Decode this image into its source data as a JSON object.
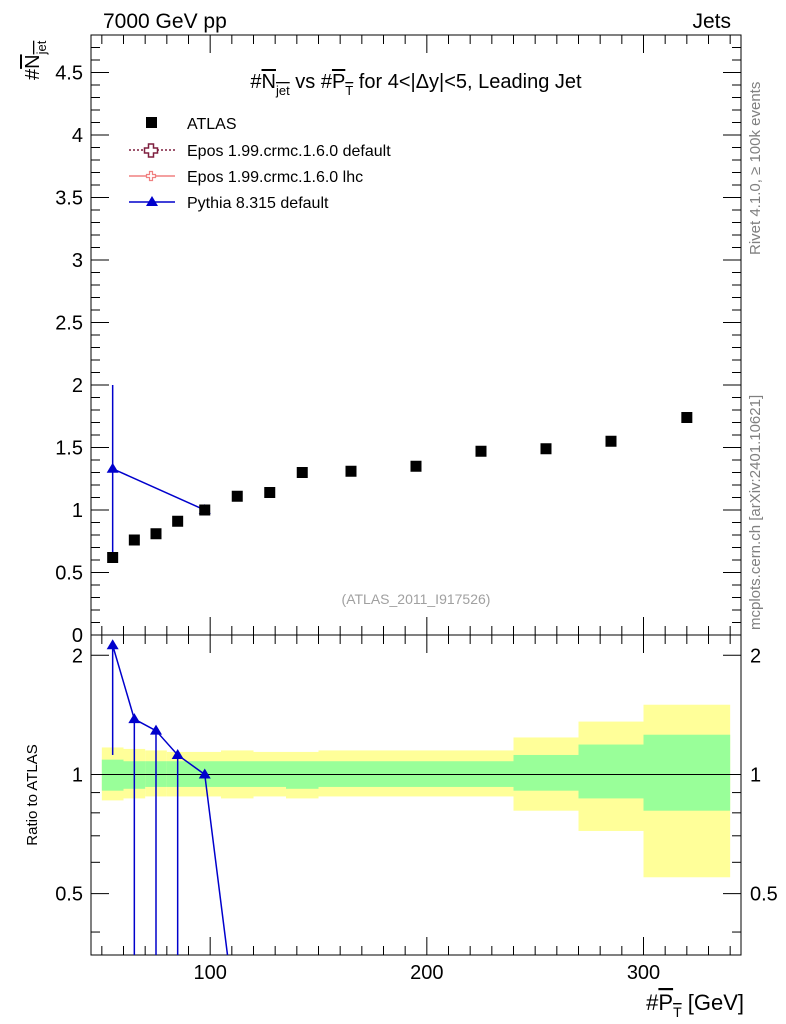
{
  "header": {
    "left_label": "7000 GeV pp",
    "right_label": "Jets",
    "side_label_top": "Rivet 4.1.0, ≥ 100k events",
    "side_label_bottom": "mcplots.cern.ch [arXiv:2401.10621]",
    "analysis_id": "(ATLAS_2011_I917526)"
  },
  "chart_data": [
    {
      "type": "scatter",
      "panel": "main",
      "title": "#N_jet vs #P_T for 4<|Δy|<5, Leading Jet",
      "title_parts": {
        "a": "#",
        "b": "N",
        "c": "jet",
        "d": " vs #",
        "e": "P",
        "f": "T",
        "g": " for 4<|Δy|<5, Leading Jet"
      },
      "xlabel": "#P_T [GeV]",
      "xlabel_parts": {
        "a": "#",
        "b": "P",
        "c": "T",
        "d": " [GeV]"
      },
      "ylabel": "#N_jet",
      "ylabel_parts": {
        "a": "#",
        "b": "N",
        "c": "jet"
      },
      "xlim": [
        45,
        345
      ],
      "ylim": [
        0,
        4.8
      ],
      "yticks": [
        {
          "value": 0,
          "label": "0"
        },
        {
          "value": 0.5,
          "label": "0.5"
        },
        {
          "value": 1,
          "label": "1"
        },
        {
          "value": 1.5,
          "label": "1.5"
        },
        {
          "value": 2,
          "label": "2"
        },
        {
          "value": 2.5,
          "label": "2.5"
        },
        {
          "value": 3,
          "label": "3"
        },
        {
          "value": 3.5,
          "label": "3.5"
        },
        {
          "value": 4,
          "label": "4"
        },
        {
          "value": 4.5,
          "label": "4.5"
        }
      ],
      "legend": [
        {
          "name": "ATLAS",
          "style": "square",
          "color": "#000000"
        },
        {
          "name": "Epos 1.99.crmc.1.6.0 default",
          "style": "open-cross-dotted",
          "color": "#7f1f3f"
        },
        {
          "name": "Epos 1.99.crmc.1.6.0 lhc",
          "style": "cross-line",
          "color": "#f08080"
        },
        {
          "name": "Pythia 8.315 default",
          "style": "triangle-line",
          "color": "#0000cc"
        }
      ],
      "series": [
        {
          "name": "ATLAS",
          "x": [
            55,
            65,
            75,
            85,
            97.5,
            112.5,
            127.5,
            142.5,
            165,
            195,
            225,
            255,
            285,
            320
          ],
          "xlow": [
            50,
            60,
            70,
            80,
            90,
            105,
            120,
            135,
            150,
            180,
            210,
            240,
            270,
            300
          ],
          "xhigh": [
            60,
            70,
            80,
            90,
            105,
            120,
            135,
            150,
            180,
            210,
            240,
            270,
            300,
            340
          ],
          "y": [
            0.62,
            0.76,
            0.81,
            0.91,
            1.0,
            1.11,
            1.14,
            1.3,
            1.31,
            1.35,
            1.47,
            1.49,
            1.55,
            1.74
          ]
        },
        {
          "name": "Pythia 8.315 default",
          "x": [
            55,
            97.5
          ],
          "y": [
            1.33,
            1.0
          ],
          "yerr_low": [
            0.67,
            0.02
          ],
          "yerr_high": [
            0.67,
            0.02
          ]
        }
      ]
    },
    {
      "type": "line",
      "panel": "ratio",
      "ylabel": "Ratio to ATLAS",
      "xlim": [
        45,
        345
      ],
      "ylim": [
        0.35,
        2.25
      ],
      "xticks": [
        {
          "value": 100,
          "label": "100"
        },
        {
          "value": 200,
          "label": "200"
        },
        {
          "value": 300,
          "label": "300"
        }
      ],
      "yticks": [
        {
          "value": 0.5,
          "label": "0.5"
        },
        {
          "value": 1,
          "label": "1"
        },
        {
          "value": 2,
          "label": "2"
        }
      ],
      "reference_line": 1,
      "bands": {
        "bins_low": [
          50,
          60,
          70,
          80,
          90,
          105,
          120,
          135,
          150,
          180,
          210,
          240,
          270,
          300
        ],
        "bins_high": [
          60,
          70,
          80,
          90,
          105,
          120,
          135,
          150,
          180,
          210,
          240,
          270,
          300,
          340
        ],
        "yellow_low": [
          0.86,
          0.87,
          0.88,
          0.88,
          0.88,
          0.87,
          0.88,
          0.87,
          0.88,
          0.88,
          0.88,
          0.81,
          0.72,
          0.55
        ],
        "yellow_high": [
          1.17,
          1.16,
          1.15,
          1.14,
          1.14,
          1.15,
          1.14,
          1.14,
          1.15,
          1.15,
          1.15,
          1.24,
          1.36,
          1.5
        ],
        "green_low": [
          0.91,
          0.92,
          0.93,
          0.93,
          0.93,
          0.93,
          0.93,
          0.92,
          0.93,
          0.93,
          0.93,
          0.91,
          0.87,
          0.81
        ],
        "green_high": [
          1.09,
          1.08,
          1.08,
          1.08,
          1.08,
          1.08,
          1.08,
          1.08,
          1.08,
          1.08,
          1.08,
          1.12,
          1.19,
          1.26
        ],
        "yellow_color": "#ffff99",
        "green_color": "#99ff99"
      },
      "series": [
        {
          "name": "Pythia 8.315 default / ATLAS",
          "x": [
            55,
            65,
            75,
            85,
            97.5,
            108
          ],
          "y": [
            2.12,
            1.38,
            1.29,
            1.12,
            1.0,
            0.35
          ],
          "markers": [
            true,
            true,
            true,
            true,
            true,
            false
          ],
          "yerr_low": [
            1.0,
            1.5,
            1.5,
            1.5,
            0.0,
            0
          ],
          "yerr_high": [
            0.0,
            0.0,
            0.0,
            0.0,
            0.0,
            0
          ]
        }
      ]
    }
  ]
}
